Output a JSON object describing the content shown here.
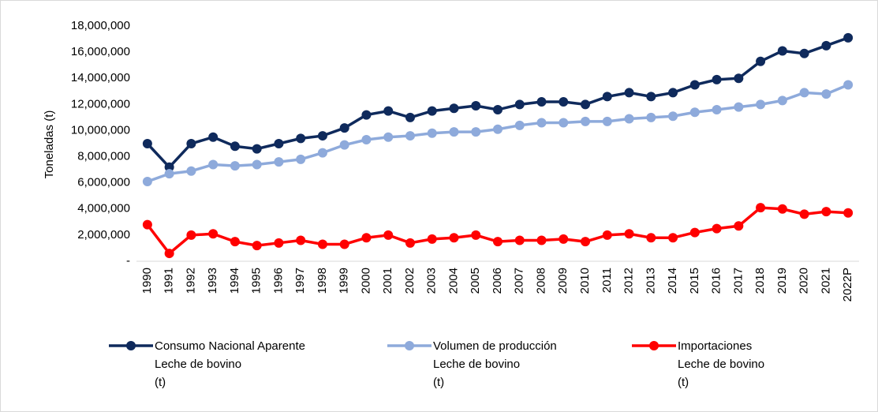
{
  "chart_data": {
    "type": "line",
    "y_label": "Toneladas (t)",
    "categories": [
      "1990",
      "1991",
      "1992",
      "1993",
      "1994",
      "1995",
      "1996",
      "1997",
      "1998",
      "1999",
      "2000",
      "2001",
      "2002",
      "2003",
      "2004",
      "2005",
      "2006",
      "2007",
      "2008",
      "2009",
      "2010",
      "2011",
      "2012",
      "2013",
      "2014",
      "2015",
      "2016",
      "2017",
      "2018",
      "2019",
      "2020",
      "2021",
      "2022P"
    ],
    "series": [
      {
        "name": "Consumo Nacional Aparente\nLeche de bovino\n(t)",
        "color": "#0f2a5c",
        "values": [
          9000000,
          7200000,
          9000000,
          9500000,
          8800000,
          8600000,
          9000000,
          9400000,
          9600000,
          10200000,
          11200000,
          11500000,
          11000000,
          11500000,
          11700000,
          11900000,
          11600000,
          12000000,
          12200000,
          12200000,
          12000000,
          12600000,
          12900000,
          12600000,
          12900000,
          13500000,
          13900000,
          14000000,
          15300000,
          16100000,
          15900000,
          16500000,
          17100000
        ]
      },
      {
        "name": "Volumen de producción\nLeche de bovino\n(t)",
        "color": "#8eaadb",
        "values": [
          6100000,
          6700000,
          6900000,
          7400000,
          7300000,
          7400000,
          7600000,
          7800000,
          8300000,
          8900000,
          9300000,
          9500000,
          9600000,
          9800000,
          9900000,
          9900000,
          10100000,
          10400000,
          10600000,
          10600000,
          10700000,
          10700000,
          10900000,
          11000000,
          11100000,
          11400000,
          11600000,
          11800000,
          12000000,
          12300000,
          12900000,
          12800000,
          13500000
        ]
      },
      {
        "name": "Importaciones\nLeche de bovino\n(t)",
        "color": "#ff0000",
        "values": [
          2800000,
          600000,
          2000000,
          2100000,
          1500000,
          1200000,
          1400000,
          1600000,
          1300000,
          1300000,
          1800000,
          2000000,
          1400000,
          1700000,
          1800000,
          2000000,
          1500000,
          1600000,
          1600000,
          1700000,
          1500000,
          2000000,
          2100000,
          1800000,
          1800000,
          2200000,
          2500000,
          2700000,
          4100000,
          4000000,
          3600000,
          3800000,
          3700000
        ]
      }
    ],
    "ylim": [
      0,
      18000000
    ],
    "yticks": [
      {
        "value": 0,
        "label": "-"
      },
      {
        "value": 2000000,
        "label": "2,000,000"
      },
      {
        "value": 4000000,
        "label": "4,000,000"
      },
      {
        "value": 6000000,
        "label": "6,000,000"
      },
      {
        "value": 8000000,
        "label": "8,000,000"
      },
      {
        "value": 10000000,
        "label": "10,000,000"
      },
      {
        "value": 12000000,
        "label": "12,000,000"
      },
      {
        "value": 14000000,
        "label": "14,000,000"
      },
      {
        "value": 16000000,
        "label": "16,000,000"
      },
      {
        "value": 18000000,
        "label": "18,000,000"
      }
    ],
    "grid": false,
    "legend": "bottom"
  }
}
